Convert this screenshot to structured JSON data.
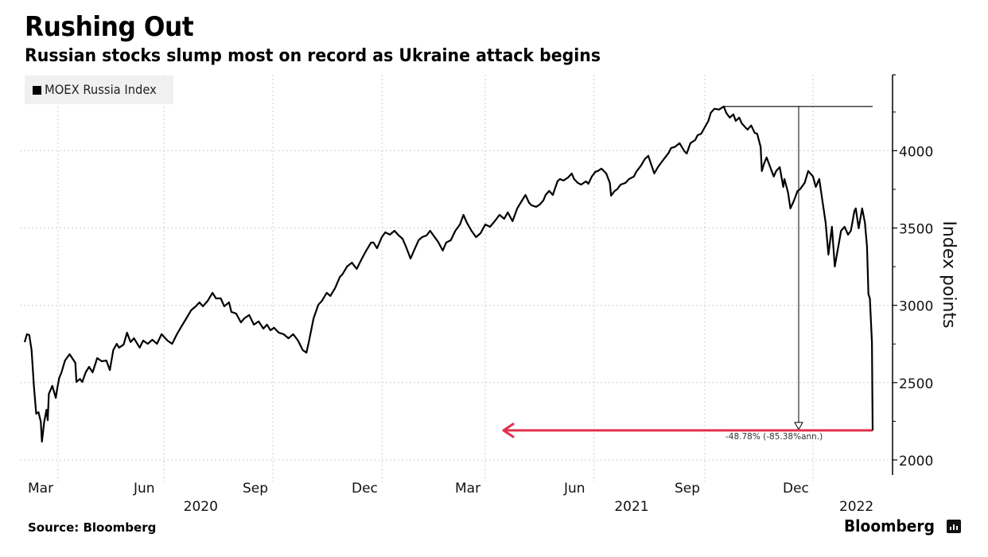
{
  "header": {
    "title": "Rushing Out",
    "subtitle": "Russian stocks slump most on record as Ukraine attack begins"
  },
  "footer": {
    "source": "Source: Bloomberg",
    "brand": "Bloomberg",
    "brand_icon": "bloomberg-chart-icon"
  },
  "colors": {
    "line": "#000000",
    "annotation_arrow": "#e0314b",
    "grid": "#cccccc",
    "legend_bg": "#f0f0f0"
  },
  "chart_data": {
    "type": "line",
    "title": "Rushing Out",
    "subtitle": "Russian stocks slump most on record as Ukraine attack begins",
    "xlabel": "",
    "ylabel": "Index points",
    "x_units": "days since 2020-03-01",
    "ylim": [
      1900,
      4450
    ],
    "y_ticks": [
      2000,
      2500,
      3000,
      3500,
      4000
    ],
    "y_tick_labels": [
      "2000",
      "2500",
      "3000",
      "3500",
      "4000"
    ],
    "y_minor_step": 250,
    "x_ticks": [
      {
        "day": 0,
        "label": "Mar"
      },
      {
        "day": 92,
        "label": "Jun"
      },
      {
        "day": 184,
        "label": "Sep"
      },
      {
        "day": 275,
        "label": "Dec"
      },
      {
        "day": 365,
        "label": "Mar"
      },
      {
        "day": 457,
        "label": "Jun"
      },
      {
        "day": 549,
        "label": "Sep"
      },
      {
        "day": 640,
        "label": "Dec"
      }
    ],
    "x_year_labels": [
      {
        "day": 122,
        "label": "2020"
      },
      {
        "day": 487,
        "label": "2021"
      },
      {
        "day": 700,
        "label": "2022"
      }
    ],
    "x_end_day": 725,
    "grid": true,
    "legend": {
      "position": "top-left",
      "entries": [
        "MOEX Russia Index"
      ]
    },
    "series": [
      {
        "name": "MOEX Russia Index",
        "points": [
          [
            -29,
            2762
          ],
          [
            -27,
            2813
          ],
          [
            -25,
            2808
          ],
          [
            -23,
            2710
          ],
          [
            -21,
            2479
          ],
          [
            -19,
            2299
          ],
          [
            -17,
            2309
          ],
          [
            -15,
            2247
          ],
          [
            -14,
            2118
          ],
          [
            -12,
            2247
          ],
          [
            -10,
            2324
          ],
          [
            -9,
            2257
          ],
          [
            -8,
            2427
          ],
          [
            -5,
            2479
          ],
          [
            -2,
            2401
          ],
          [
            -1,
            2452
          ],
          [
            1,
            2530
          ],
          [
            3,
            2566
          ],
          [
            6,
            2643
          ],
          [
            10,
            2684
          ],
          [
            15,
            2628
          ],
          [
            16,
            2504
          ],
          [
            19,
            2524
          ],
          [
            21,
            2504
          ],
          [
            24,
            2566
          ],
          [
            27,
            2602
          ],
          [
            30,
            2566
          ],
          [
            34,
            2659
          ],
          [
            38,
            2638
          ],
          [
            42,
            2643
          ],
          [
            45,
            2581
          ],
          [
            48,
            2710
          ],
          [
            51,
            2751
          ],
          [
            53,
            2726
          ],
          [
            57,
            2746
          ],
          [
            60,
            2823
          ],
          [
            63,
            2762
          ],
          [
            66,
            2787
          ],
          [
            71,
            2726
          ],
          [
            74,
            2772
          ],
          [
            78,
            2751
          ],
          [
            82,
            2777
          ],
          [
            86,
            2751
          ],
          [
            90,
            2813
          ],
          [
            95,
            2772
          ],
          [
            99,
            2751
          ],
          [
            103,
            2813
          ],
          [
            107,
            2865
          ],
          [
            111,
            2916
          ],
          [
            115,
            2968
          ],
          [
            119,
            2994
          ],
          [
            122,
            3019
          ],
          [
            125,
            2994
          ],
          [
            129,
            3029
          ],
          [
            133,
            3081
          ],
          [
            136,
            3045
          ],
          [
            140,
            3045
          ],
          [
            143,
            2994
          ],
          [
            147,
            3019
          ],
          [
            149,
            2957
          ],
          [
            153,
            2947
          ],
          [
            157,
            2890
          ],
          [
            160,
            2916
          ],
          [
            164,
            2937
          ],
          [
            168,
            2875
          ],
          [
            172,
            2896
          ],
          [
            176,
            2849
          ],
          [
            179,
            2875
          ],
          [
            182,
            2839
          ],
          [
            185,
            2855
          ],
          [
            189,
            2823
          ],
          [
            193,
            2813
          ],
          [
            197,
            2787
          ],
          [
            201,
            2813
          ],
          [
            205,
            2772
          ],
          [
            209,
            2710
          ],
          [
            212,
            2694
          ],
          [
            214,
            2762
          ],
          [
            218,
            2916
          ],
          [
            222,
            3004
          ],
          [
            225,
            3029
          ],
          [
            229,
            3081
          ],
          [
            232,
            3060
          ],
          [
            236,
            3112
          ],
          [
            240,
            3184
          ],
          [
            242,
            3199
          ],
          [
            246,
            3251
          ],
          [
            250,
            3276
          ],
          [
            254,
            3235
          ],
          [
            258,
            3297
          ],
          [
            262,
            3354
          ],
          [
            266,
            3406
          ],
          [
            268,
            3406
          ],
          [
            271,
            3369
          ],
          [
            275,
            3441
          ],
          [
            278,
            3472
          ],
          [
            282,
            3457
          ],
          [
            286,
            3482
          ],
          [
            289,
            3457
          ],
          [
            293,
            3431
          ],
          [
            296,
            3380
          ],
          [
            300,
            3302
          ],
          [
            303,
            3354
          ],
          [
            307,
            3421
          ],
          [
            310,
            3441
          ],
          [
            314,
            3452
          ],
          [
            317,
            3482
          ],
          [
            321,
            3441
          ],
          [
            324,
            3410
          ],
          [
            328,
            3354
          ],
          [
            331,
            3406
          ],
          [
            335,
            3421
          ],
          [
            339,
            3482
          ],
          [
            343,
            3523
          ],
          [
            346,
            3585
          ],
          [
            349,
            3534
          ],
          [
            353,
            3482
          ],
          [
            357,
            3441
          ],
          [
            361,
            3467
          ],
          [
            365,
            3523
          ],
          [
            369,
            3508
          ],
          [
            373,
            3544
          ],
          [
            377,
            3585
          ],
          [
            381,
            3560
          ],
          [
            384,
            3601
          ],
          [
            388,
            3544
          ],
          [
            392,
            3627
          ],
          [
            396,
            3678
          ],
          [
            399,
            3714
          ],
          [
            402,
            3663
          ],
          [
            404,
            3647
          ],
          [
            408,
            3637
          ],
          [
            411,
            3652
          ],
          [
            414,
            3678
          ],
          [
            416,
            3714
          ],
          [
            419,
            3740
          ],
          [
            422,
            3714
          ],
          [
            426,
            3802
          ],
          [
            428,
            3817
          ],
          [
            431,
            3807
          ],
          [
            435,
            3827
          ],
          [
            438,
            3853
          ],
          [
            440,
            3817
          ],
          [
            443,
            3792
          ],
          [
            446,
            3781
          ],
          [
            450,
            3802
          ],
          [
            452,
            3786
          ],
          [
            455,
            3833
          ],
          [
            458,
            3864
          ],
          [
            460,
            3869
          ],
          [
            463,
            3884
          ],
          [
            467,
            3853
          ],
          [
            470,
            3792
          ],
          [
            471,
            3709
          ],
          [
            474,
            3740
          ],
          [
            476,
            3750
          ],
          [
            479,
            3781
          ],
          [
            483,
            3792
          ],
          [
            486,
            3817
          ],
          [
            490,
            3833
          ],
          [
            492,
            3864
          ],
          [
            496,
            3905
          ],
          [
            499,
            3946
          ],
          [
            502,
            3967
          ],
          [
            504,
            3920
          ],
          [
            507,
            3853
          ],
          [
            510,
            3894
          ],
          [
            512,
            3915
          ],
          [
            515,
            3946
          ],
          [
            519,
            3987
          ],
          [
            521,
            4018
          ],
          [
            524,
            4024
          ],
          [
            528,
            4049
          ],
          [
            532,
            3997
          ],
          [
            534,
            3982
          ],
          [
            537,
            4049
          ],
          [
            541,
            4069
          ],
          [
            543,
            4100
          ],
          [
            546,
            4110
          ],
          [
            549,
            4152
          ],
          [
            552,
            4193
          ],
          [
            554,
            4245
          ],
          [
            557,
            4271
          ],
          [
            561,
            4266
          ],
          [
            565,
            4286
          ],
          [
            567,
            4245
          ],
          [
            570,
            4214
          ],
          [
            573,
            4235
          ],
          [
            575,
            4193
          ],
          [
            578,
            4214
          ],
          [
            580,
            4178
          ],
          [
            583,
            4152
          ],
          [
            585,
            4137
          ],
          [
            588,
            4163
          ],
          [
            591,
            4115
          ],
          [
            593,
            4110
          ],
          [
            596,
            4024
          ],
          [
            597,
            3869
          ],
          [
            599,
            3920
          ],
          [
            601,
            3956
          ],
          [
            604,
            3894
          ],
          [
            607,
            3833
          ],
          [
            609,
            3869
          ],
          [
            612,
            3894
          ],
          [
            615,
            3766
          ],
          [
            616,
            3817
          ],
          [
            619,
            3730
          ],
          [
            621,
            3627
          ],
          [
            624,
            3678
          ],
          [
            627,
            3740
          ],
          [
            629,
            3750
          ],
          [
            633,
            3792
          ],
          [
            636,
            3869
          ],
          [
            640,
            3833
          ],
          [
            644,
            3766
          ],
          [
            649,
            3817
          ],
          [
            653,
            3688
          ],
          [
            658,
            3534
          ],
          [
            662,
            3328
          ],
          [
            667,
            3508
          ],
          [
            671,
            3251
          ],
          [
            676,
            3380
          ],
          [
            680,
            3482
          ],
          [
            685,
            3508
          ],
          [
            690,
            3457
          ],
          [
            694,
            3482
          ],
          [
            699,
            3611
          ],
          [
            701,
            3627
          ],
          [
            705,
            3498
          ],
          [
            710,
            3627
          ],
          [
            714,
            3534
          ],
          [
            717,
            3380
          ],
          [
            719,
            3071
          ],
          [
            721,
            3045
          ],
          [
            724,
            2762
          ],
          [
            725,
            2191
          ]
        ]
      }
    ],
    "annotations": {
      "peak_value": 4286,
      "end_value": 2191,
      "change_label": "-48.78% (-85.38%ann.)"
    }
  }
}
